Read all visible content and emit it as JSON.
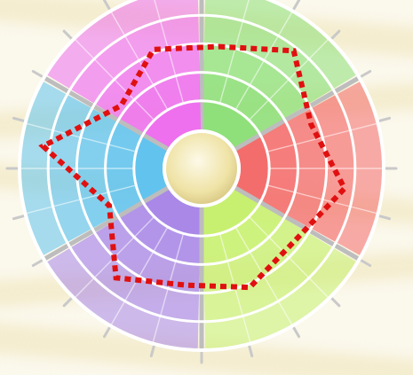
{
  "diagram": {
    "type": "radial-segment-wheel",
    "rings": 5,
    "sectors": [
      {
        "name": "green",
        "color": "#8fe07a"
      },
      {
        "name": "red",
        "color": "#f46d6d"
      },
      {
        "name": "yellow-green",
        "color": "#c8f070"
      },
      {
        "name": "purple",
        "color": "#a988e8"
      },
      {
        "name": "blue",
        "color": "#62c4ee"
      },
      {
        "name": "magenta",
        "color": "#ee70ee"
      }
    ],
    "center_color": "#efe3a6",
    "outline": {
      "color": "#e01010",
      "style": "dotted",
      "ring_levels": [
        3.2,
        4.2,
        3.0,
        4.0,
        3.0,
        3.4,
        3.0,
        3.8,
        2.3,
        4.6,
        2.4,
        3.4
      ]
    }
  }
}
